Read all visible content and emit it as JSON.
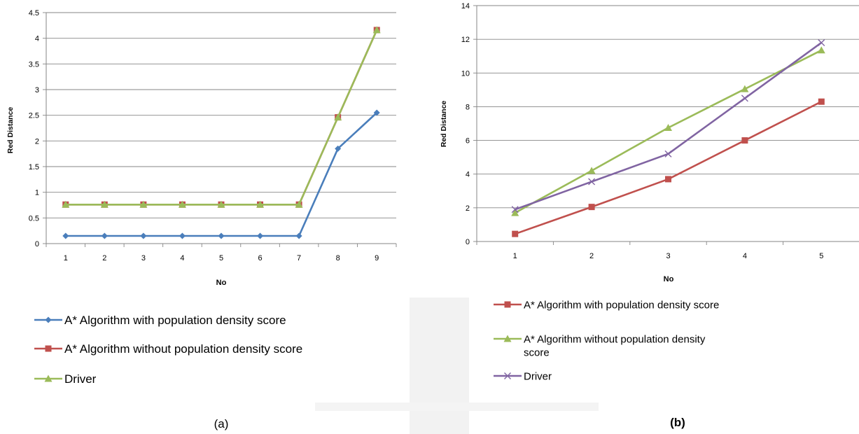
{
  "chart_data": [
    {
      "type": "line",
      "caption": "(a)",
      "xlabel": "No",
      "ylabel": "Red Distance",
      "x": [
        1,
        2,
        3,
        4,
        5,
        6,
        7,
        8,
        9
      ],
      "ylim": [
        0,
        4.5
      ],
      "yticks": [
        "0",
        "0.5",
        "1",
        "1.5",
        "2",
        "2.5",
        "3",
        "3.5",
        "4",
        "4.5"
      ],
      "grid": true,
      "legend": "bottom",
      "series": [
        {
          "name": "A* Algorithm with population density score",
          "color": "#4a7ebb",
          "marker": "diamond",
          "values": [
            0.15,
            0.15,
            0.15,
            0.15,
            0.15,
            0.15,
            0.15,
            1.85,
            2.55
          ]
        },
        {
          "name": "A* Algorithm without population density score",
          "color": "#c0504d",
          "marker": "square",
          "values": [
            0.76,
            0.76,
            0.76,
            0.76,
            0.76,
            0.76,
            0.76,
            2.46,
            4.16
          ]
        },
        {
          "name": "Driver",
          "color": "#9bbb59",
          "marker": "triangle",
          "values": [
            0.76,
            0.76,
            0.76,
            0.76,
            0.76,
            0.76,
            0.76,
            2.46,
            4.16
          ]
        }
      ]
    },
    {
      "type": "line",
      "caption": "(b)",
      "xlabel": "No",
      "ylabel": "Red Distance",
      "x": [
        1,
        2,
        3,
        4,
        5
      ],
      "ylim": [
        0,
        14
      ],
      "yticks": [
        "0",
        "2",
        "4",
        "6",
        "8",
        "10",
        "12",
        "14"
      ],
      "grid": true,
      "legend": "bottom",
      "series": [
        {
          "name": "A* Algorithm with population density score",
          "color": "#c0504d",
          "marker": "square",
          "values": [
            0.45,
            2.05,
            3.7,
            6.0,
            8.3
          ]
        },
        {
          "name": "A* Algorithm without population density score",
          "color": "#9bbb59",
          "marker": "triangle",
          "values": [
            1.7,
            4.2,
            6.75,
            9.05,
            11.35
          ]
        },
        {
          "name": "Driver",
          "color": "#8064a2",
          "marker": "x",
          "values": [
            1.9,
            3.55,
            5.2,
            8.5,
            11.8
          ]
        }
      ]
    }
  ]
}
